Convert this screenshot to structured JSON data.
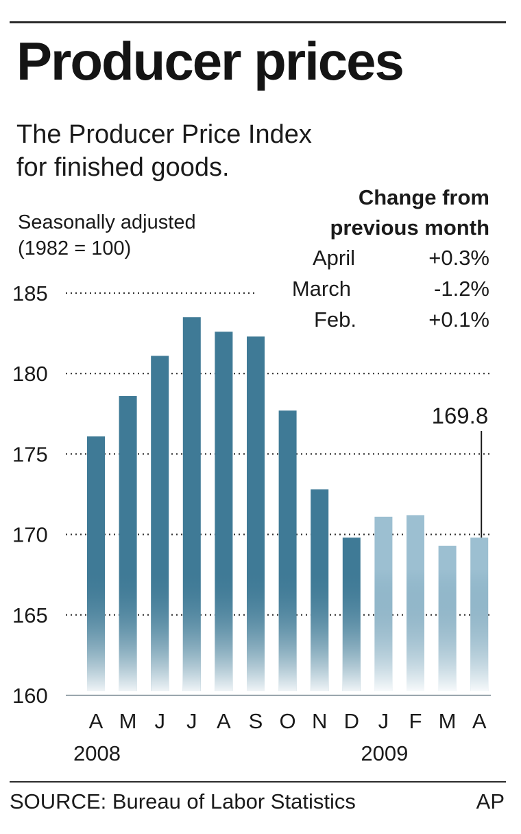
{
  "header": {
    "title": "Producer prices",
    "subtitle_line1": "The Producer Price Index",
    "subtitle_line2": "for finished goods.",
    "note_line1": "Seasonally adjusted",
    "note_line2": "(1982 = 100)"
  },
  "change_table": {
    "heading_line1": "Change from",
    "heading_line2": "previous month",
    "rows": [
      {
        "month": "April",
        "change": "+0.3%"
      },
      {
        "month": "March",
        "change": "-1.2%"
      },
      {
        "month": "Feb.",
        "change": "+0.1%"
      }
    ]
  },
  "chart_data": {
    "type": "bar",
    "categories": [
      "A",
      "M",
      "J",
      "J",
      "A",
      "S",
      "O",
      "N",
      "D",
      "J",
      "F",
      "M",
      "A"
    ],
    "year_labels": [
      {
        "text": "2008",
        "category_index": 0
      },
      {
        "text": "2009",
        "category_index": 9
      }
    ],
    "values": [
      176.1,
      178.6,
      181.1,
      183.5,
      182.6,
      182.3,
      177.7,
      172.8,
      169.8,
      171.1,
      171.2,
      169.3,
      169.8
    ],
    "period": [
      "2008",
      "2008",
      "2008",
      "2008",
      "2008",
      "2008",
      "2008",
      "2008",
      "2008",
      "2009",
      "2009",
      "2009",
      "2009"
    ],
    "ylim": [
      160,
      185
    ],
    "yticks": [
      160,
      165,
      170,
      175,
      180,
      185
    ],
    "grid": true,
    "annotation": {
      "text": "169.8",
      "category_index": 12
    },
    "colors": {
      "2008": "#3f7a96",
      "2009": "#9cbfd1",
      "fade": "#ffffff",
      "grid": "#333333"
    },
    "xlabel": "",
    "ylabel": ""
  },
  "footer": {
    "source": "SOURCE: Bureau of Labor Statistics",
    "credit": "AP"
  }
}
